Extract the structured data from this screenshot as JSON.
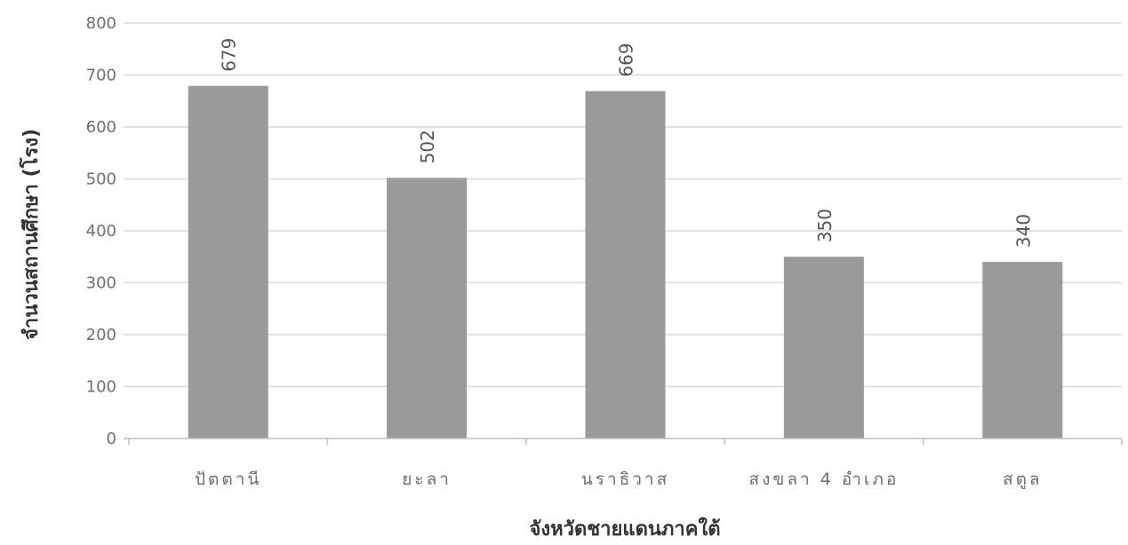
{
  "chart_data": {
    "type": "bar",
    "categories": [
      "ปัตตานี",
      "ยะลา",
      "นราธิวาส",
      "สงขลา 4 อำเภอ",
      "สตูล"
    ],
    "values": [
      679,
      502,
      669,
      350,
      340
    ],
    "data_labels": [
      "679",
      "502",
      "669",
      "350",
      "340"
    ],
    "title": "",
    "xlabel": "จังหวัดชายแดนภาคใต้",
    "ylabel": "จำนวนสถานศึกษา  (โรง)",
    "ylim": [
      0,
      800
    ],
    "yticks": [
      0,
      100,
      200,
      300,
      400,
      500,
      600,
      700,
      800
    ],
    "grid": true,
    "legend": "none",
    "colors": {
      "bar": "#9a9a9a",
      "grid": "#d9d9d9",
      "axis": "#bfbfbf"
    }
  }
}
